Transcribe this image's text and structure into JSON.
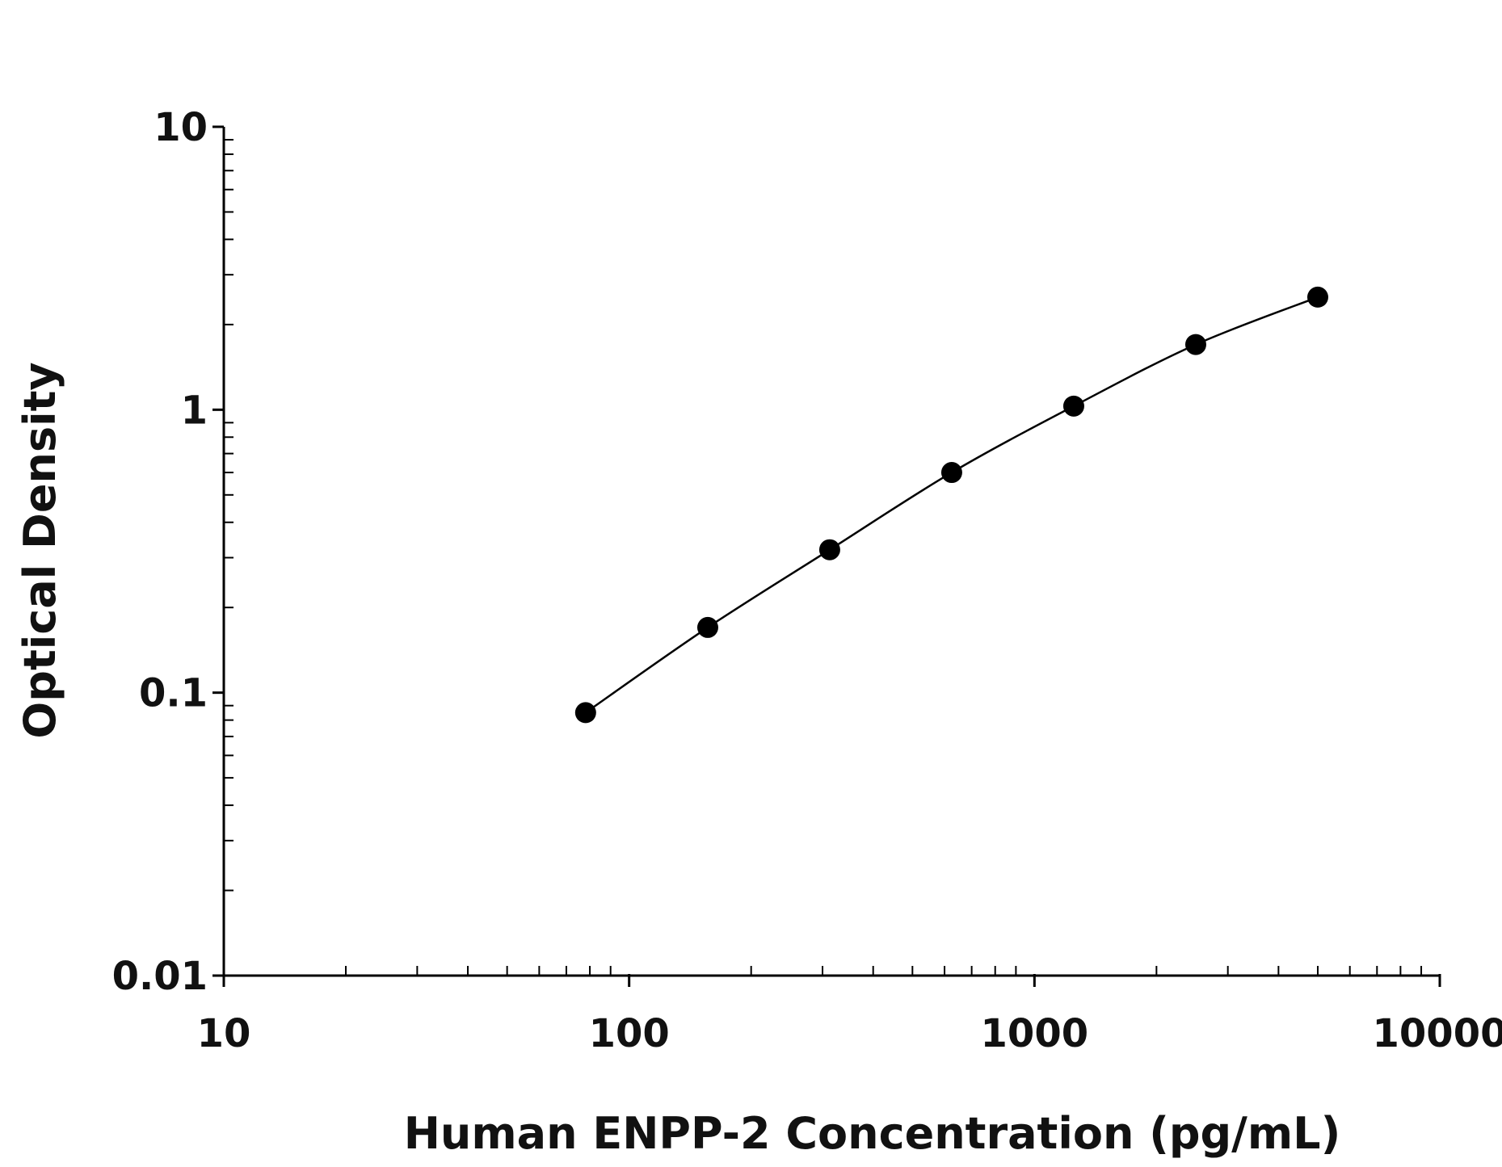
{
  "chart_data": {
    "type": "scatter",
    "title": "",
    "xlabel": "Human ENPP-2 Concentration (pg/mL)",
    "ylabel": "Optical Density",
    "xscale": "log",
    "yscale": "log",
    "xlim": [
      10,
      10000
    ],
    "ylim": [
      0.01,
      10
    ],
    "x_ticks": [
      {
        "value": 10,
        "label": "10"
      },
      {
        "value": 100,
        "label": "100"
      },
      {
        "value": 1000,
        "label": "1000"
      },
      {
        "value": 10000,
        "label": "10000"
      }
    ],
    "y_ticks": [
      {
        "value": 0.01,
        "label": "0.01"
      },
      {
        "value": 0.1,
        "label": "0.1"
      },
      {
        "value": 1,
        "label": "1"
      },
      {
        "value": 10,
        "label": "10"
      }
    ],
    "grid": false,
    "legend": "none",
    "fit_curve": true,
    "series": [
      {
        "x": [
          78.1,
          156.3,
          312.5,
          625,
          1250,
          2500,
          5000
        ],
        "y": [
          0.085,
          0.17,
          0.32,
          0.6,
          1.03,
          1.7,
          2.5
        ],
        "marker_color": "#000000",
        "line_color": "#000000"
      }
    ]
  }
}
